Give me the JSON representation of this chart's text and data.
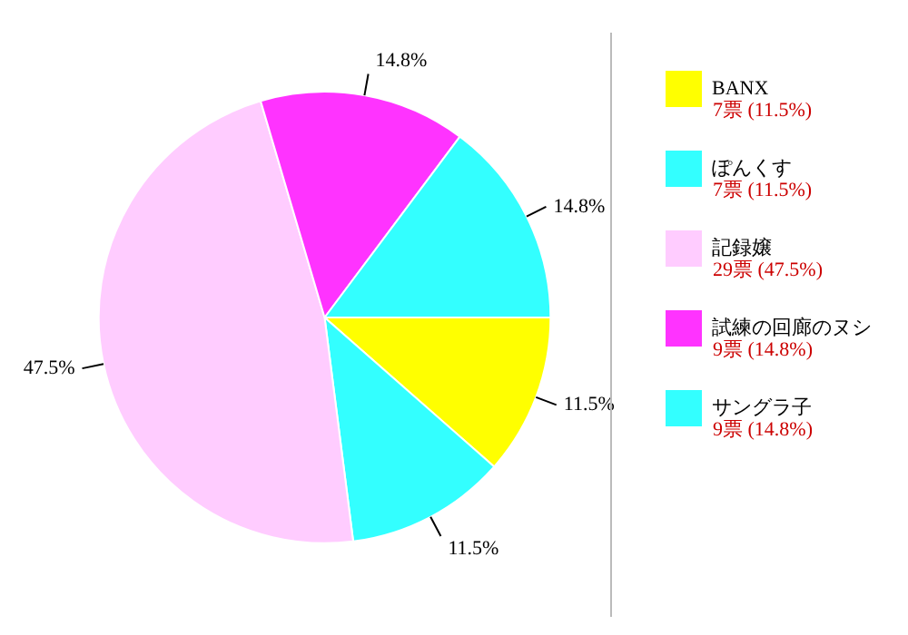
{
  "chart_data": {
    "type": "pie",
    "categories": [
      "BANX",
      "ぽんくす",
      "記録嬢",
      "試練の回廊のヌシ",
      "サングラ子"
    ],
    "values": [
      11.5,
      11.5,
      47.5,
      14.8,
      14.8
    ],
    "colors": [
      "#ffff00",
      "#33ffff",
      "#ffccff",
      "#ff33ff",
      "#33ffff"
    ],
    "value_labels": [
      "11.5%",
      "11.5%",
      "47.5%",
      "14.8%",
      "14.8%"
    ],
    "annotations": [
      "7票 (11.5%)",
      "7票 (11.5%)",
      "29票 (47.5%)",
      "9票 (14.8%)",
      "9票 (14.8%)"
    ],
    "legend": "right"
  }
}
